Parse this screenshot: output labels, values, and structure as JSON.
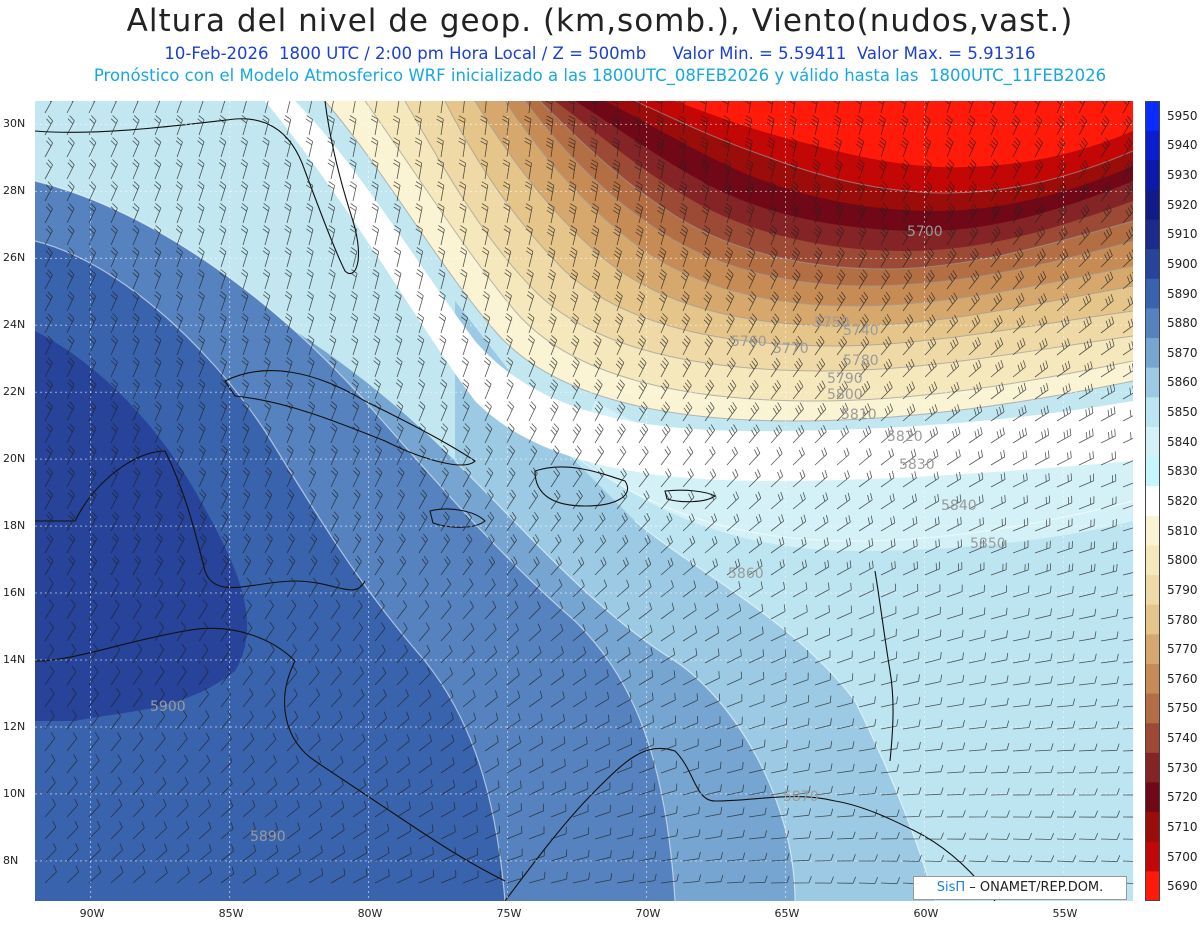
{
  "title": "Altura del nivel de geop. (km,somb.), Viento(nudos,vast.)",
  "subtitle1": "10-Feb-2026  1800 UTC / 2:00 pm Hora Local / Z = 500mb     Valor Min. = 5.59411  Valor Max. = 5.91316",
  "subtitle2": "Pronóstico con el Modelo Atmosferico WRF inicializado a las 1800UTC_08FEB2026 y válido hasta las  1800UTC_11FEB2026",
  "map": {
    "lon_range": [
      -92,
      -52.5
    ],
    "lat_range": [
      6.8,
      30.7
    ],
    "lat_ticks": [
      "30N",
      "28N",
      "26N",
      "24N",
      "22N",
      "20N",
      "18N",
      "16N",
      "14N",
      "12N",
      "10N",
      "8N"
    ],
    "lon_ticks": [
      "90W",
      "85W",
      "80W",
      "75W",
      "70W",
      "65W",
      "60W",
      "55W"
    ],
    "contour_labels": [
      "5700",
      "5740",
      "5750",
      "5760",
      "5770",
      "5780",
      "5790",
      "5800",
      "5810",
      "5820",
      "5830",
      "5840",
      "5850",
      "5860",
      "5870",
      "5890",
      "5900"
    ]
  },
  "colorbar": {
    "levels": [
      "5950",
      "5940",
      "5930",
      "5920",
      "5910",
      "5900",
      "5890",
      "5880",
      "5870",
      "5860",
      "5850",
      "5840",
      "5830",
      "5820",
      "5810",
      "5800",
      "5790",
      "5780",
      "5770",
      "5760",
      "5750",
      "5740",
      "5730",
      "5720",
      "5710",
      "5700",
      "5690"
    ],
    "colors": [
      "#0a2cff",
      "#0a1ed0",
      "#0b1aa8",
      "#121a88",
      "#1c2a8c",
      "#27439a",
      "#3a63ad",
      "#5683bf",
      "#77a5d2",
      "#9ccae4",
      "#bde5f1",
      "#d3f1f7",
      "#c6f6fb",
      "#ffffff",
      "#faf4d4",
      "#f5e8bc",
      "#efd9a6",
      "#e5c58a",
      "#d6a86d",
      "#c78c55",
      "#b36e44",
      "#9c4a35",
      "#852426",
      "#700817",
      "#9b0d0b",
      "#c20706",
      "#ff1a0a"
    ]
  },
  "credit": {
    "logo": "SisΠ",
    "text": "– ONAMET/REP.DOM."
  }
}
